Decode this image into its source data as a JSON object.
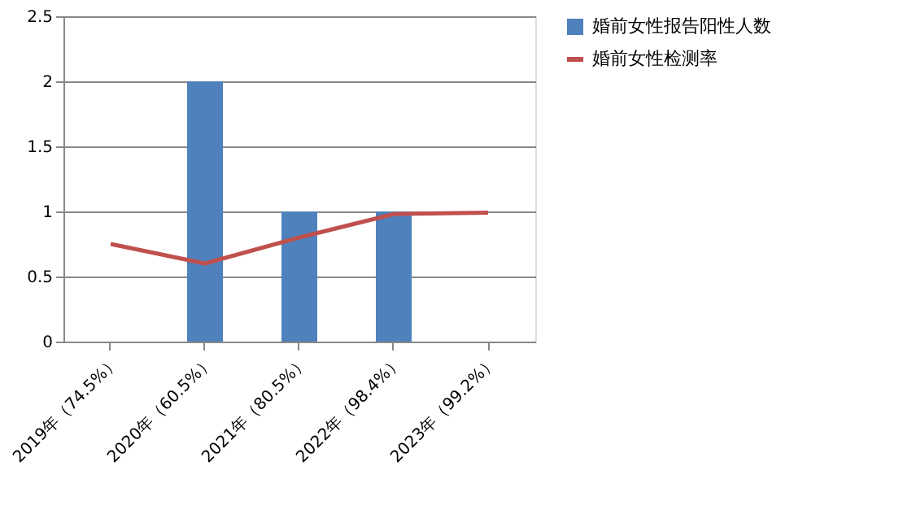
{
  "chart_data": {
    "type": "bar",
    "categories": [
      "2019年（74.5%）",
      "2020年（60.5%）",
      "2021年（80.5%）",
      "2022年（98.4%）",
      "2023年（99.2%）"
    ],
    "series": [
      {
        "name": "婚前女性报告阳性人数",
        "color": "#4f81bd",
        "values": [
          0,
          2,
          1,
          1,
          0
        ]
      },
      {
        "name": "婚前女性检测率",
        "type": "line",
        "color": "#c0504d",
        "values": [
          0.75,
          0.6,
          0.8,
          0.98,
          0.99
        ]
      }
    ],
    "ylim": [
      0,
      2.5
    ],
    "yticks": [
      0,
      0.5,
      1,
      1.5,
      2,
      2.5
    ],
    "grid": "y",
    "legend": "right",
    "marker": "none",
    "line_style": "solid"
  }
}
